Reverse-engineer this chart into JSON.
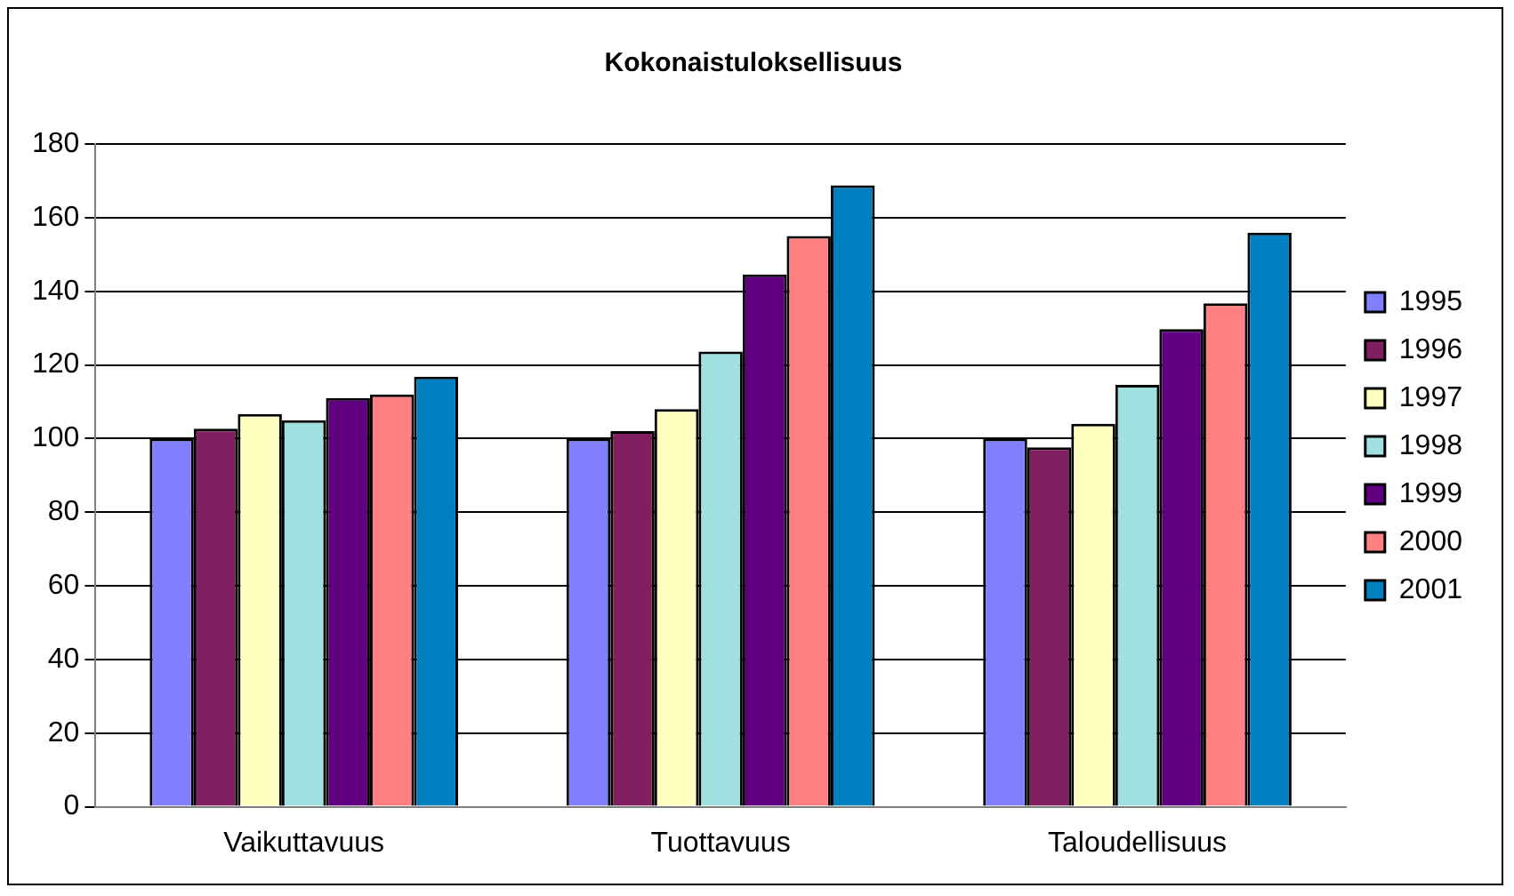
{
  "chart_data": {
    "type": "bar",
    "title": "Kokonaistuloksellisuus",
    "categories": [
      "Vaikuttavuus",
      "Tuottavuus",
      "Taloudellisuus"
    ],
    "series": [
      {
        "name": "1995",
        "color": "#8080ff",
        "values": [
          100,
          100,
          100
        ]
      },
      {
        "name": "1996",
        "color": "#802060",
        "values": [
          102.7,
          102,
          97.6
        ]
      },
      {
        "name": "1997",
        "color": "#ffffc0",
        "values": [
          106.7,
          108,
          104
        ]
      },
      {
        "name": "1998",
        "color": "#a0e0e0",
        "values": [
          105,
          123.6,
          114.6
        ]
      },
      {
        "name": "1999",
        "color": "#600080",
        "values": [
          111,
          144.6,
          129.7
        ]
      },
      {
        "name": "2000",
        "color": "#ff8080",
        "values": [
          112,
          155,
          136.7
        ]
      },
      {
        "name": "2001",
        "color": "#0080c0",
        "values": [
          116.8,
          168.8,
          155.9
        ]
      }
    ],
    "ylim": [
      0,
      180
    ],
    "yticks": [
      0,
      20,
      40,
      60,
      80,
      100,
      120,
      140,
      160,
      180
    ],
    "grid": "y",
    "legend": "right"
  }
}
